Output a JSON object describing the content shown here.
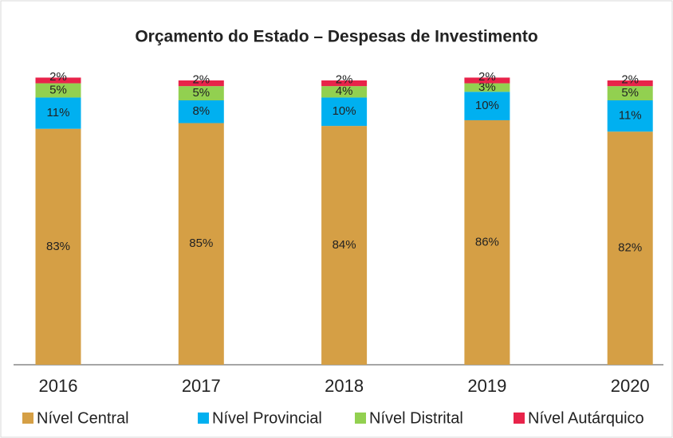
{
  "chart_data": {
    "type": "stacked_bar",
    "title": "Orçamento do Estado – Despesas de Investimento",
    "categories": [
      "2016",
      "2017",
      "2018",
      "2019",
      "2020"
    ],
    "series": [
      {
        "name": "Nível Central",
        "color": "#d59f45",
        "values": [
          83,
          85,
          84,
          86,
          82
        ],
        "value_labels": [
          "83%",
          "85%",
          "84%",
          "86%",
          "82%"
        ]
      },
      {
        "name": "Nível Provincial",
        "color": "#00b0f0",
        "values": [
          11,
          8,
          10,
          10,
          11
        ],
        "value_labels": [
          "11%",
          "8%",
          "10%",
          "10%",
          "11%"
        ]
      },
      {
        "name": "Nível Distrital",
        "color": "#92d050",
        "values": [
          5,
          5,
          4,
          3,
          5
        ],
        "value_labels": [
          "5%",
          "5%",
          "4%",
          "3%",
          "5%"
        ]
      },
      {
        "name": "Nível Autárquico",
        "color": "#e8234a",
        "values": [
          2,
          2,
          2,
          2,
          2
        ],
        "value_labels": [
          "2%",
          "2%",
          "2%",
          "2%",
          "2%"
        ]
      }
    ],
    "ylim": [
      0,
      100
    ],
    "legend": "bottom"
  }
}
